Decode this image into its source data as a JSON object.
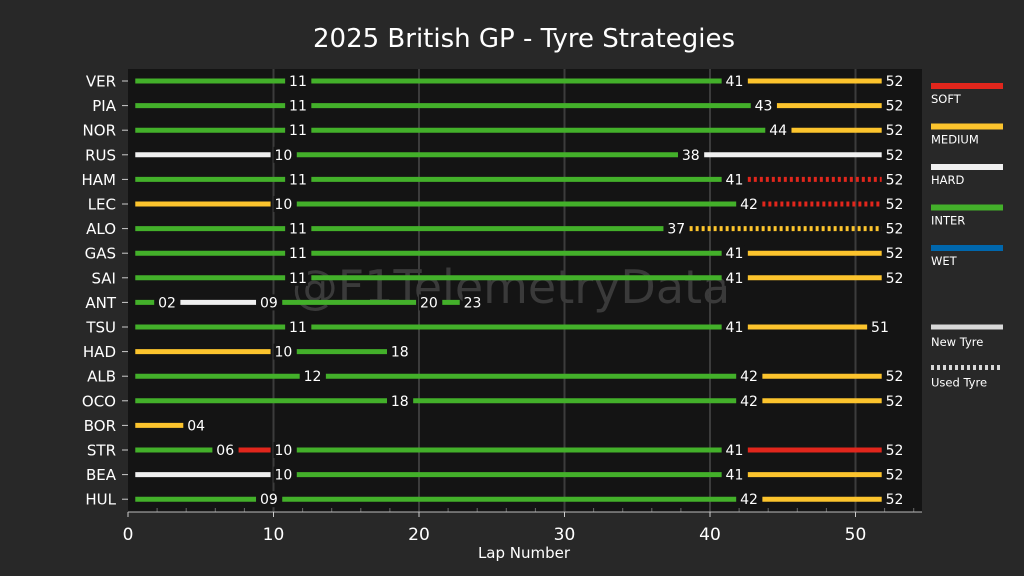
{
  "chart_data": {
    "type": "bar",
    "title": "2025 British GP - Tyre Strategies",
    "xlabel": "Lap Number",
    "ylabel": "",
    "xlim": [
      0,
      54.5
    ],
    "xticks": [
      0,
      10,
      20,
      30,
      40,
      50
    ],
    "grid": "vertical",
    "watermark": "@F1TelemetryData",
    "compound_colors": {
      "SOFT": "#e1261c",
      "MEDIUM": "#fcc42d",
      "HARD": "#f0f0f0",
      "INTER": "#43b02a",
      "WET": "#0067ad"
    },
    "legend": {
      "placement": "right",
      "compounds": [
        "SOFT",
        "MEDIUM",
        "HARD",
        "INTER",
        "WET"
      ],
      "tyre_age": [
        "New Tyre",
        "Used Tyre"
      ]
    },
    "drivers": [
      {
        "name": "VER",
        "stints": [
          {
            "compound": "INTER",
            "start": 0,
            "end": 11,
            "used": false
          },
          {
            "compound": "INTER",
            "start": 11,
            "end": 41,
            "used": false
          },
          {
            "compound": "MEDIUM",
            "start": 41,
            "end": 52,
            "used": false
          }
        ]
      },
      {
        "name": "PIA",
        "stints": [
          {
            "compound": "INTER",
            "start": 0,
            "end": 11,
            "used": false
          },
          {
            "compound": "INTER",
            "start": 11,
            "end": 43,
            "used": false
          },
          {
            "compound": "MEDIUM",
            "start": 43,
            "end": 52,
            "used": false
          }
        ]
      },
      {
        "name": "NOR",
        "stints": [
          {
            "compound": "INTER",
            "start": 0,
            "end": 11,
            "used": false
          },
          {
            "compound": "INTER",
            "start": 11,
            "end": 44,
            "used": false
          },
          {
            "compound": "MEDIUM",
            "start": 44,
            "end": 52,
            "used": false
          }
        ]
      },
      {
        "name": "RUS",
        "stints": [
          {
            "compound": "HARD",
            "start": 0,
            "end": 10,
            "used": false
          },
          {
            "compound": "INTER",
            "start": 10,
            "end": 38,
            "used": false
          },
          {
            "compound": "HARD",
            "start": 38,
            "end": 52,
            "used": false
          }
        ]
      },
      {
        "name": "HAM",
        "stints": [
          {
            "compound": "INTER",
            "start": 0,
            "end": 11,
            "used": false
          },
          {
            "compound": "INTER",
            "start": 11,
            "end": 41,
            "used": false
          },
          {
            "compound": "SOFT",
            "start": 41,
            "end": 52,
            "used": true
          }
        ]
      },
      {
        "name": "LEC",
        "stints": [
          {
            "compound": "MEDIUM",
            "start": 0,
            "end": 10,
            "used": false
          },
          {
            "compound": "INTER",
            "start": 10,
            "end": 42,
            "used": false
          },
          {
            "compound": "SOFT",
            "start": 42,
            "end": 52,
            "used": true
          }
        ]
      },
      {
        "name": "ALO",
        "stints": [
          {
            "compound": "INTER",
            "start": 0,
            "end": 11,
            "used": false
          },
          {
            "compound": "INTER",
            "start": 11,
            "end": 37,
            "used": false
          },
          {
            "compound": "MEDIUM",
            "start": 37,
            "end": 52,
            "used": true
          }
        ]
      },
      {
        "name": "GAS",
        "stints": [
          {
            "compound": "INTER",
            "start": 0,
            "end": 11,
            "used": false
          },
          {
            "compound": "INTER",
            "start": 11,
            "end": 41,
            "used": false
          },
          {
            "compound": "MEDIUM",
            "start": 41,
            "end": 52,
            "used": false
          }
        ]
      },
      {
        "name": "SAI",
        "stints": [
          {
            "compound": "INTER",
            "start": 0,
            "end": 11,
            "used": false
          },
          {
            "compound": "INTER",
            "start": 11,
            "end": 41,
            "used": false
          },
          {
            "compound": "MEDIUM",
            "start": 41,
            "end": 52,
            "used": false
          }
        ]
      },
      {
        "name": "ANT",
        "stints": [
          {
            "compound": "INTER",
            "start": 0,
            "end": 2,
            "used": false
          },
          {
            "compound": "HARD",
            "start": 2,
            "end": 9,
            "used": false
          },
          {
            "compound": "INTER",
            "start": 9,
            "end": 20,
            "used": false
          },
          {
            "compound": "INTER",
            "start": 20,
            "end": 23,
            "used": false
          }
        ]
      },
      {
        "name": "TSU",
        "stints": [
          {
            "compound": "INTER",
            "start": 0,
            "end": 11,
            "used": false
          },
          {
            "compound": "INTER",
            "start": 11,
            "end": 41,
            "used": false
          },
          {
            "compound": "MEDIUM",
            "start": 41,
            "end": 51,
            "used": false
          }
        ]
      },
      {
        "name": "HAD",
        "stints": [
          {
            "compound": "MEDIUM",
            "start": 0,
            "end": 10,
            "used": false
          },
          {
            "compound": "INTER",
            "start": 10,
            "end": 18,
            "used": false
          }
        ]
      },
      {
        "name": "ALB",
        "stints": [
          {
            "compound": "INTER",
            "start": 0,
            "end": 12,
            "used": false
          },
          {
            "compound": "INTER",
            "start": 12,
            "end": 42,
            "used": false
          },
          {
            "compound": "MEDIUM",
            "start": 42,
            "end": 52,
            "used": false
          }
        ]
      },
      {
        "name": "OCO",
        "stints": [
          {
            "compound": "INTER",
            "start": 0,
            "end": 18,
            "used": false
          },
          {
            "compound": "INTER",
            "start": 18,
            "end": 42,
            "used": false
          },
          {
            "compound": "MEDIUM",
            "start": 42,
            "end": 52,
            "used": false
          }
        ]
      },
      {
        "name": "BOR",
        "stints": [
          {
            "compound": "MEDIUM",
            "start": 0,
            "end": 4,
            "used": false
          }
        ]
      },
      {
        "name": "STR",
        "stints": [
          {
            "compound": "INTER",
            "start": 0,
            "end": 6,
            "used": false
          },
          {
            "compound": "SOFT",
            "start": 6,
            "end": 10,
            "used": false
          },
          {
            "compound": "INTER",
            "start": 10,
            "end": 41,
            "used": false
          },
          {
            "compound": "SOFT",
            "start": 41,
            "end": 52,
            "used": false
          }
        ]
      },
      {
        "name": "BEA",
        "stints": [
          {
            "compound": "HARD",
            "start": 0,
            "end": 10,
            "used": false
          },
          {
            "compound": "INTER",
            "start": 10,
            "end": 41,
            "used": false
          },
          {
            "compound": "MEDIUM",
            "start": 41,
            "end": 52,
            "used": false
          }
        ]
      },
      {
        "name": "HUL",
        "stints": [
          {
            "compound": "INTER",
            "start": 0,
            "end": 9,
            "used": false
          },
          {
            "compound": "INTER",
            "start": 9,
            "end": 42,
            "used": false
          },
          {
            "compound": "MEDIUM",
            "start": 42,
            "end": 52,
            "used": false
          }
        ]
      }
    ]
  }
}
